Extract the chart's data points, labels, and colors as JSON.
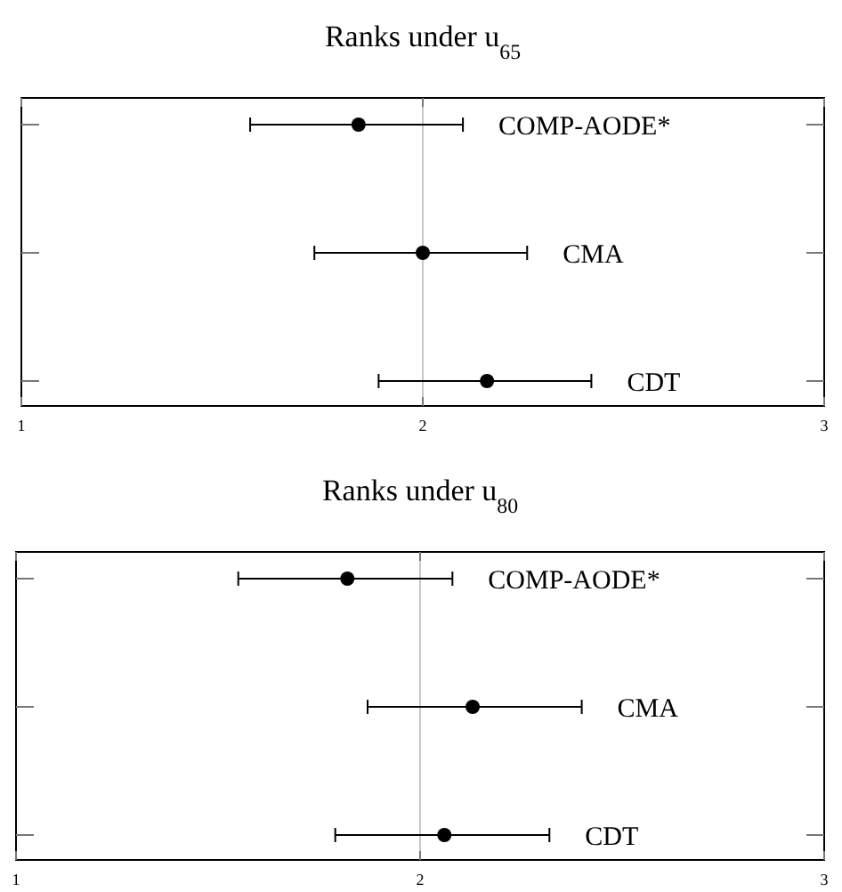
{
  "chart_data": [
    {
      "type": "scatter",
      "title": "Ranks under u$_{65}$",
      "orientation": "horizontal",
      "categories": [
        "COMP-AODE*",
        "CMA",
        "CDT"
      ],
      "values": [
        1.84,
        2.0,
        2.16
      ],
      "errors": [
        [
          1.57,
          2.1
        ],
        [
          1.73,
          2.26
        ],
        [
          1.89,
          2.42
        ]
      ],
      "color": "#000000",
      "marker": "circle",
      "xlim": [
        1,
        3
      ],
      "xticks": [
        1,
        2,
        3
      ],
      "grid": "x",
      "tick_labels": "x"
    },
    {
      "type": "scatter",
      "title": "Ranks under u$_{80}$",
      "orientation": "horizontal",
      "categories": [
        "COMP-AODE*",
        "CMA",
        "CDT"
      ],
      "values": [
        1.82,
        2.13,
        2.06
      ],
      "errors": [
        [
          1.55,
          2.08
        ],
        [
          1.87,
          2.4
        ],
        [
          1.79,
          2.32
        ]
      ],
      "color": "#000000",
      "marker": "circle",
      "xlim": [
        1,
        3
      ],
      "xticks": [
        1,
        2,
        3
      ],
      "grid": "x",
      "tick_labels": "x"
    }
  ]
}
